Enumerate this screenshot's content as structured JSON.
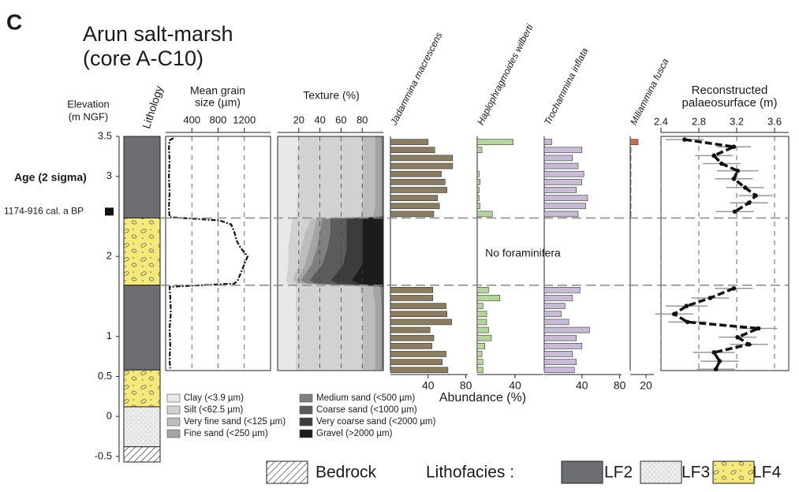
{
  "panel_label": "C",
  "title": [
    "Arun salt-marsh",
    "(core A-C10)"
  ],
  "chart_data": {
    "type": "core-log",
    "elevation_label": [
      "Elevation",
      "(m NGF)"
    ],
    "ylim": [
      -0.6,
      3.5
    ],
    "yticks": [
      -0.5,
      0,
      0.5,
      1,
      2,
      3,
      3.5
    ],
    "age": {
      "label": "Age (2 sigma)",
      "range": "1174-916 cal. a BP",
      "elevation": 2.56
    },
    "boundaries": [
      2.48,
      1.64
    ],
    "lithology": {
      "label": "Lithology",
      "legend_title": "Lithofacies :",
      "facies": [
        {
          "name": "Bedrock",
          "fill": "hatch"
        },
        {
          "name": "LF2",
          "fill": "#6d6e71"
        },
        {
          "name": "LF3",
          "fill": "dots"
        },
        {
          "name": "LF4",
          "fill": "pebbles"
        }
      ],
      "units": [
        {
          "facies": "LF2",
          "top": 3.5,
          "bottom": 2.48
        },
        {
          "facies": "LF4",
          "top": 2.48,
          "bottom": 1.64
        },
        {
          "facies": "LF2",
          "top": 1.64,
          "bottom": 0.58
        },
        {
          "facies": "LF4",
          "top": 0.58,
          "bottom": 0.12
        },
        {
          "facies": "LF3",
          "top": 0.12,
          "bottom": -0.38
        },
        {
          "facies": "Bedrock",
          "top": -0.38,
          "bottom": -0.57
        }
      ]
    },
    "grain_size": {
      "title": [
        "Mean grain",
        "size (µm)"
      ],
      "xlim": [
        0,
        1600
      ],
      "xticks": [
        400,
        800,
        1200
      ],
      "elevation": [
        3.48,
        3.45,
        3.35,
        3.2,
        3.0,
        2.8,
        2.6,
        2.49,
        2.45,
        2.4,
        2.3,
        2.2,
        2.1,
        2.0,
        1.9,
        1.8,
        1.7,
        1.66,
        1.62,
        1.5,
        1.3,
        1.1,
        0.9,
        0.7,
        0.6
      ],
      "values": [
        120,
        60,
        50,
        60,
        50,
        60,
        50,
        60,
        820,
        1000,
        1050,
        1080,
        1150,
        1250,
        1200,
        1150,
        1100,
        1050,
        60,
        70,
        80,
        60,
        70,
        60,
        70
      ]
    },
    "texture": {
      "title": "Texture (%)",
      "xlim": [
        0,
        100
      ],
      "xticks": [
        20,
        40,
        60,
        80
      ],
      "elevation": [
        3.5,
        3.2,
        2.9,
        2.6,
        2.5,
        2.47,
        2.3,
        2.1,
        1.9,
        1.7,
        1.66,
        1.62,
        1.4,
        1.0,
        0.58
      ],
      "series": [
        {
          "name": "Clay (<3.9 µm)",
          "color": "#e8e8e8",
          "values": [
            20,
            18,
            19,
            18,
            18,
            14,
            12,
            10,
            10,
            8,
            10,
            18,
            17,
            18,
            17
          ]
        },
        {
          "name": "Silt (<62.5 µm)",
          "color": "#d2d2d2",
          "values": [
            60,
            62,
            61,
            62,
            60,
            18,
            14,
            12,
            10,
            6,
            8,
            60,
            63,
            62,
            63
          ]
        },
        {
          "name": "Very fine sand (<125 µm)",
          "color": "#bcbcbc",
          "values": [
            12,
            12,
            12,
            12,
            12,
            5,
            8,
            8,
            6,
            4,
            5,
            12,
            12,
            12,
            12
          ]
        },
        {
          "name": "Fine sand (<250 µm)",
          "color": "#a4a4a4",
          "values": [
            6,
            6,
            6,
            6,
            8,
            5,
            6,
            7,
            6,
            4,
            5,
            7,
            6,
            6,
            6
          ]
        },
        {
          "name": "Medium sand (<500 µm)",
          "color": "#808080",
          "values": [
            2,
            2,
            2,
            2,
            2,
            8,
            10,
            10,
            10,
            8,
            8,
            3,
            2,
            2,
            2
          ]
        },
        {
          "name": "Coarse sand (<1000 µm)",
          "color": "#5c5c5c",
          "values": [
            0,
            0,
            0,
            0,
            0,
            15,
            15,
            18,
            20,
            20,
            20,
            0,
            0,
            0,
            0
          ]
        },
        {
          "name": "Very coarse sand (<2000 µm)",
          "color": "#3c3c3c",
          "values": [
            0,
            0,
            0,
            0,
            0,
            15,
            15,
            15,
            18,
            20,
            20,
            0,
            0,
            0,
            0
          ]
        },
        {
          "name": "Gravel (>2000 µm)",
          "color": "#1c1c1c",
          "values": [
            0,
            0,
            0,
            0,
            0,
            20,
            20,
            20,
            20,
            30,
            24,
            0,
            0,
            0,
            0
          ]
        }
      ]
    },
    "foraminifera": {
      "xlabel": "Abundance (%)",
      "note": "No foraminifera",
      "elevation": [
        3.43,
        3.33,
        3.23,
        3.13,
        3.03,
        2.93,
        2.83,
        2.73,
        2.63,
        2.53,
        1.58,
        1.48,
        1.38,
        1.28,
        1.18,
        1.08,
        0.98,
        0.88,
        0.78,
        0.68,
        0.58
      ],
      "series": [
        {
          "name": "Jadammina macrescens",
          "color": "#8b7d60",
          "xlim": [
            0,
            82
          ],
          "xticks": [
            40,
            80
          ],
          "values": [
            40,
            47,
            66,
            66,
            54,
            58,
            60,
            50,
            52,
            46,
            45,
            45,
            59,
            60,
            65,
            42,
            46,
            44,
            59,
            55,
            61
          ]
        },
        {
          "name": "Haplophragmoides wilberti",
          "color": "#b5d69a",
          "xlim": [
            0,
            70
          ],
          "xticks": [
            40
          ],
          "values": [
            38,
            5,
            0,
            0,
            2,
            3,
            2,
            2,
            3,
            16,
            12,
            24,
            6,
            10,
            10,
            12,
            15,
            8,
            5,
            6,
            6
          ]
        },
        {
          "name": "Trochammina inflata",
          "color": "#c9bad6",
          "xlim": [
            0,
            82
          ],
          "xticks": [
            40,
            80
          ],
          "values": [
            8,
            40,
            30,
            36,
            42,
            40,
            34,
            46,
            44,
            36,
            38,
            30,
            22,
            18,
            26,
            48,
            34,
            40,
            30,
            34,
            32
          ]
        },
        {
          "name": "Miliammina fusca",
          "color": "#c8704a",
          "xlim": [
            0,
            30
          ],
          "xticks": [
            20
          ],
          "values": [
            10,
            1,
            1,
            1,
            1,
            1,
            1,
            1,
            1,
            1,
            0,
            0,
            0,
            0,
            0,
            0,
            0,
            0,
            0,
            0,
            0
          ]
        }
      ]
    },
    "palaeosurface": {
      "title": [
        "Reconstructed",
        "palaeosurface (m)"
      ],
      "xlim": [
        2.4,
        3.75
      ],
      "xticks": [
        2.4,
        2.8,
        3.2,
        3.6
      ],
      "elevation": [
        3.46,
        3.37,
        3.26,
        3.16,
        3.07,
        2.97,
        2.86,
        2.76,
        2.67,
        2.56,
        null,
        1.6,
        1.48,
        1.38,
        1.28,
        1.18,
        1.1,
        0.99,
        0.9,
        0.8,
        0.69,
        0.59
      ],
      "values": [
        2.65,
        3.17,
        2.96,
        3.04,
        3.21,
        3.17,
        3.29,
        3.4,
        3.33,
        3.18,
        null,
        3.17,
        2.92,
        2.67,
        2.54,
        2.68,
        3.43,
        3.21,
        3.33,
        2.96,
        3.02,
        2.98
      ],
      "errors": [
        0.2,
        0.18,
        0.2,
        0.2,
        0.22,
        0.2,
        0.2,
        0.18,
        0.2,
        0.2,
        null,
        0.2,
        0.2,
        0.22,
        0.2,
        0.2,
        0.2,
        0.2,
        0.2,
        0.22,
        0.2,
        0.2
      ]
    }
  }
}
